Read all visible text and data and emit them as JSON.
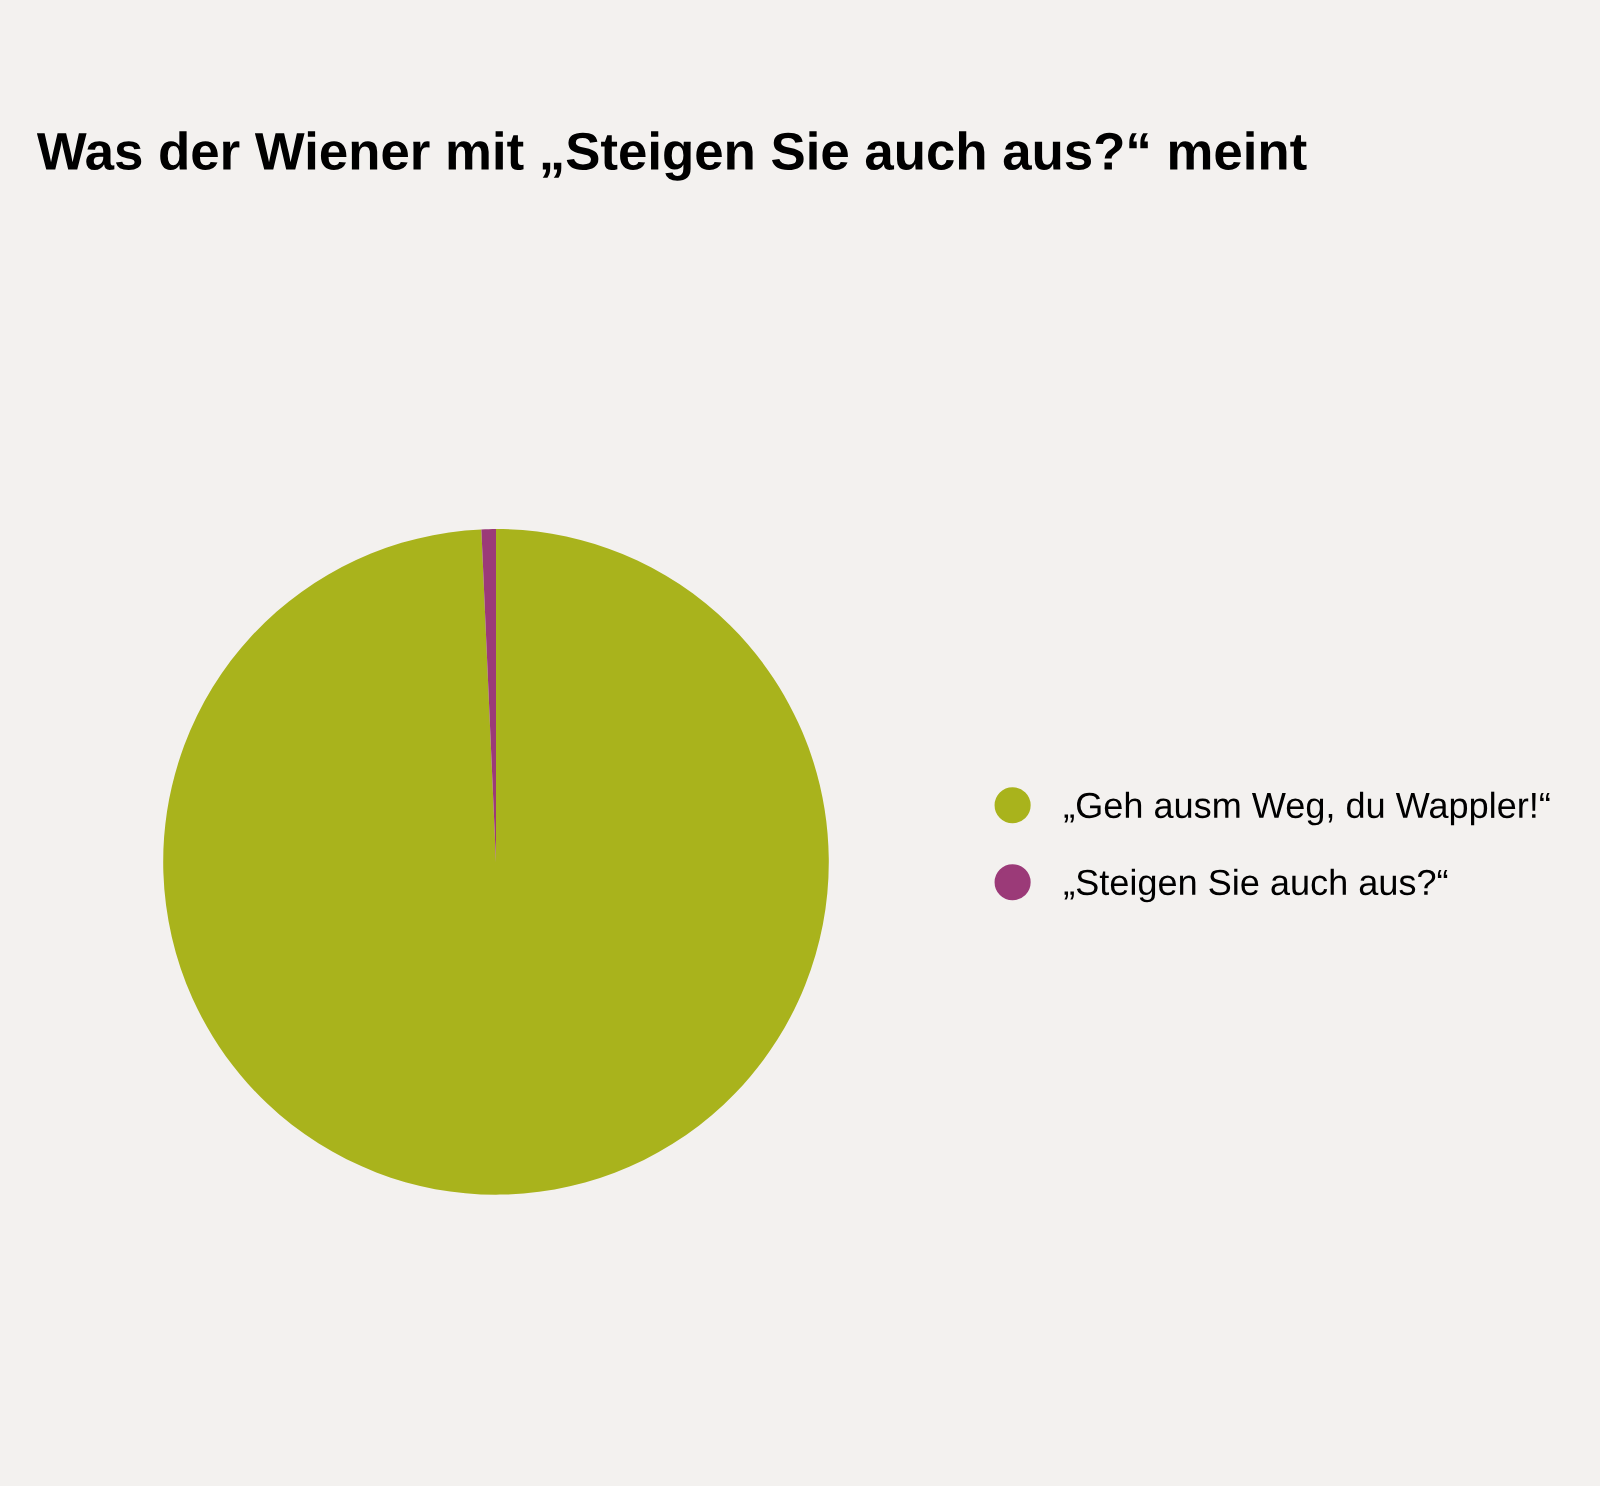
{
  "chart_data": {
    "type": "pie",
    "title": "Was der Wiener mit „Steigen Sie auch aus?“ meint",
    "categories": [
      "„Geh ausm Weg, du Wappler!“",
      "„Steigen Sie auch aus?“"
    ],
    "values": [
      99.3,
      0.7
    ],
    "colors": [
      "#a9b31c",
      "#9b3a78"
    ],
    "legend": "right"
  }
}
